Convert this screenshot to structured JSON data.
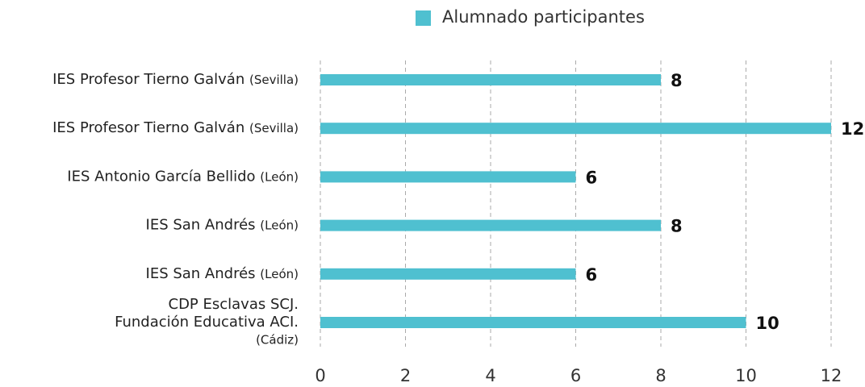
{
  "chart_data": {
    "type": "bar",
    "orientation": "horizontal",
    "legend": "top",
    "series": [
      {
        "name": "Alumnado participantes",
        "color": "#4fc0d0",
        "values": [
          8,
          12,
          6,
          8,
          6,
          10
        ]
      }
    ],
    "categories": [
      {
        "lines": [
          "IES Profesor Tierno Galván"
        ],
        "place": "(Sevilla)"
      },
      {
        "lines": [
          "IES Profesor Tierno Galván"
        ],
        "place": "(Sevilla)"
      },
      {
        "lines": [
          "IES Antonio García Bellido"
        ],
        "place": "(León)"
      },
      {
        "lines": [
          "IES San Andrés"
        ],
        "place": "(León)"
      },
      {
        "lines": [
          "IES San Andrés"
        ],
        "place": "(León)"
      },
      {
        "lines": [
          "CDP Esclavas SCJ.",
          "Fundación Educativa ACI."
        ],
        "place": "(Cádiz)"
      }
    ],
    "xlim": [
      0,
      12
    ],
    "xticks": [
      0,
      2,
      4,
      6,
      8,
      10,
      12
    ],
    "grid": true
  }
}
